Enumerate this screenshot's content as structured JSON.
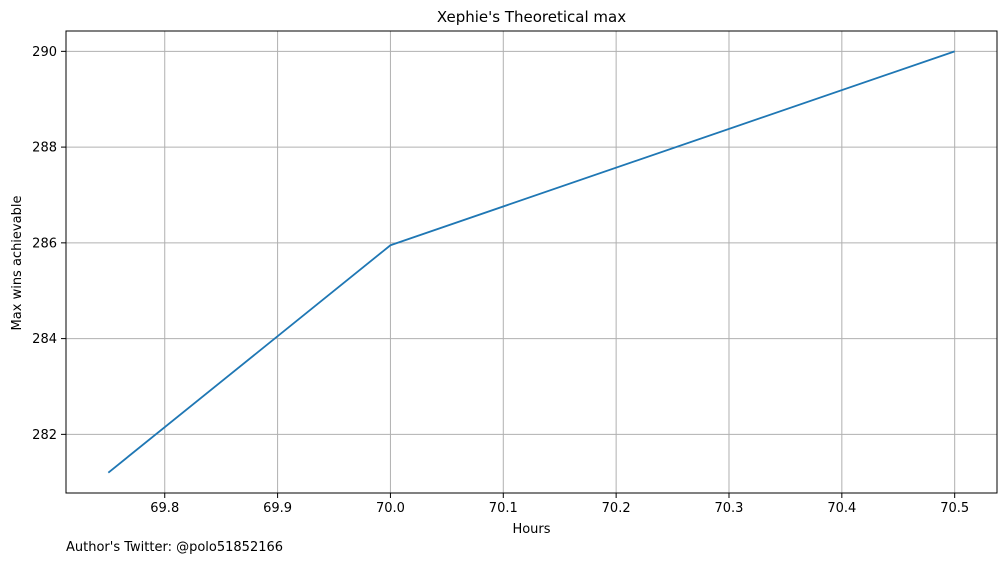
{
  "chart_data": {
    "type": "line",
    "title": "Xephie's Theoretical max",
    "xlabel": "Hours",
    "ylabel": "Max wins achievable",
    "x": [
      69.75,
      70.0,
      70.5
    ],
    "series": [
      {
        "values": [
          281.2,
          285.95,
          290.0
        ],
        "color": "#1f77b4"
      }
    ],
    "xticks": [
      69.8,
      69.9,
      70.0,
      70.1,
      70.2,
      70.3,
      70.4,
      70.5
    ],
    "xtick_labels": [
      "69.8",
      "69.9",
      "70.0",
      "70.1",
      "70.2",
      "70.3",
      "70.4",
      "70.5"
    ],
    "yticks": [
      282,
      284,
      286,
      288,
      290
    ],
    "ytick_labels": [
      "282",
      "284",
      "286",
      "288",
      "290"
    ],
    "xlim": [
      69.7125,
      70.5375
    ],
    "ylim": [
      280.775,
      290.425
    ],
    "grid": true,
    "grid_color": "#b0b0b0"
  },
  "footer": {
    "credit": "Author's Twitter: @polo51852166"
  }
}
